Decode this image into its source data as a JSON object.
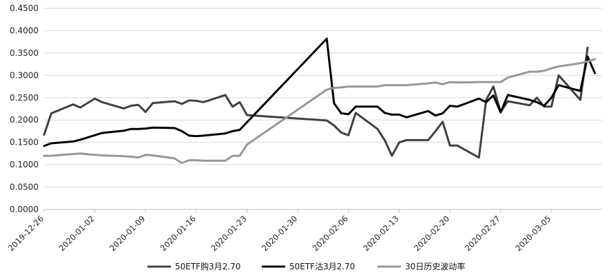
{
  "chart_data": {
    "type": "line",
    "title": "",
    "xlabel": "",
    "ylabel": "",
    "ylim": [
      0,
      0.45
    ],
    "y_ticks": [
      "0.0000",
      "0.0500",
      "0.1000",
      "0.1500",
      "0.2000",
      "0.2500",
      "0.3000",
      "0.3500",
      "0.4000",
      "0.4500"
    ],
    "x_ticks": [
      "2019-12-26",
      "2020-01-02",
      "2020-01-09",
      "2020-01-16",
      "2020-01-23",
      "2020-01-30",
      "2020-02-06",
      "2020-02-13",
      "2020-02-20",
      "2020-02-27",
      "2020-03-05"
    ],
    "x_range": [
      "2019-12-26",
      "2020-03-12"
    ],
    "grid": "horizontal",
    "legend_position": "bottom",
    "series": [
      {
        "name": "50ETF购3月2.70",
        "color": "#404040",
        "points": [
          [
            "2019-12-26",
            0.167
          ],
          [
            "2019-12-27",
            0.215
          ],
          [
            "2019-12-30",
            0.235
          ],
          [
            "2019-12-31",
            0.228
          ],
          [
            "2020-01-02",
            0.248
          ],
          [
            "2020-01-03",
            0.24
          ],
          [
            "2020-01-06",
            0.226
          ],
          [
            "2020-01-07",
            0.232
          ],
          [
            "2020-01-08",
            0.234
          ],
          [
            "2020-01-09",
            0.218
          ],
          [
            "2020-01-10",
            0.238
          ],
          [
            "2020-01-13",
            0.242
          ],
          [
            "2020-01-14",
            0.236
          ],
          [
            "2020-01-15",
            0.244
          ],
          [
            "2020-01-16",
            0.243
          ],
          [
            "2020-01-17",
            0.24
          ],
          [
            "2020-01-20",
            0.256
          ],
          [
            "2020-01-21",
            0.23
          ],
          [
            "2020-01-22",
            0.24
          ],
          [
            "2020-01-23",
            0.211
          ],
          [
            "2020-02-03",
            0.199
          ],
          [
            "2020-02-04",
            0.188
          ],
          [
            "2020-02-05",
            0.172
          ],
          [
            "2020-02-06",
            0.166
          ],
          [
            "2020-02-07",
            0.216
          ],
          [
            "2020-02-10",
            0.18
          ],
          [
            "2020-02-11",
            0.155
          ],
          [
            "2020-02-12",
            0.12
          ],
          [
            "2020-02-13",
            0.15
          ],
          [
            "2020-02-14",
            0.155
          ],
          [
            "2020-02-17",
            0.155
          ],
          [
            "2020-02-18",
            0.175
          ],
          [
            "2020-02-19",
            0.196
          ],
          [
            "2020-02-20",
            0.143
          ],
          [
            "2020-02-21",
            0.143
          ],
          [
            "2020-02-24",
            0.116
          ],
          [
            "2020-02-25",
            0.245
          ],
          [
            "2020-02-26",
            0.275
          ],
          [
            "2020-02-27",
            0.218
          ],
          [
            "2020-02-28",
            0.242
          ],
          [
            "2020-03-02",
            0.233
          ],
          [
            "2020-03-03",
            0.25
          ],
          [
            "2020-03-04",
            0.23
          ],
          [
            "2020-03-05",
            0.23
          ],
          [
            "2020-03-06",
            0.3
          ],
          [
            "2020-03-09",
            0.245
          ],
          [
            "2020-03-10",
            0.362
          ]
        ]
      },
      {
        "name": "50ETF沽3月2.70",
        "color": "#000000",
        "points": [
          [
            "2019-12-26",
            0.142
          ],
          [
            "2019-12-27",
            0.148
          ],
          [
            "2019-12-30",
            0.152
          ],
          [
            "2019-12-31",
            0.156
          ],
          [
            "2020-01-02",
            0.166
          ],
          [
            "2020-01-03",
            0.171
          ],
          [
            "2020-01-06",
            0.176
          ],
          [
            "2020-01-07",
            0.18
          ],
          [
            "2020-01-08",
            0.18
          ],
          [
            "2020-01-09",
            0.181
          ],
          [
            "2020-01-10",
            0.183
          ],
          [
            "2020-01-13",
            0.182
          ],
          [
            "2020-01-14",
            0.175
          ],
          [
            "2020-01-15",
            0.165
          ],
          [
            "2020-01-16",
            0.164
          ],
          [
            "2020-01-17",
            0.165
          ],
          [
            "2020-01-20",
            0.17
          ],
          [
            "2020-01-21",
            0.175
          ],
          [
            "2020-01-22",
            0.178
          ],
          [
            "2020-02-03",
            0.382
          ],
          [
            "2020-02-04",
            0.238
          ],
          [
            "2020-02-05",
            0.215
          ],
          [
            "2020-02-06",
            0.213
          ],
          [
            "2020-02-07",
            0.23
          ],
          [
            "2020-02-10",
            0.23
          ],
          [
            "2020-02-11",
            0.216
          ],
          [
            "2020-02-12",
            0.212
          ],
          [
            "2020-02-13",
            0.212
          ],
          [
            "2020-02-14",
            0.206
          ],
          [
            "2020-02-17",
            0.22
          ],
          [
            "2020-02-18",
            0.21
          ],
          [
            "2020-02-19",
            0.215
          ],
          [
            "2020-02-20",
            0.232
          ],
          [
            "2020-02-21",
            0.23
          ],
          [
            "2020-02-24",
            0.248
          ],
          [
            "2020-02-25",
            0.24
          ],
          [
            "2020-02-26",
            0.255
          ],
          [
            "2020-02-27",
            0.217
          ],
          [
            "2020-02-28",
            0.256
          ],
          [
            "2020-03-02",
            0.245
          ],
          [
            "2020-03-03",
            0.24
          ],
          [
            "2020-03-04",
            0.232
          ],
          [
            "2020-03-05",
            0.25
          ],
          [
            "2020-03-06",
            0.278
          ],
          [
            "2020-03-09",
            0.265
          ],
          [
            "2020-03-10",
            0.342
          ],
          [
            "2020-03-11",
            0.305
          ]
        ]
      },
      {
        "name": "30日历史波动率",
        "color": "#969696",
        "points": [
          [
            "2019-12-26",
            0.12
          ],
          [
            "2019-12-27",
            0.12
          ],
          [
            "2019-12-30",
            0.124
          ],
          [
            "2019-12-31",
            0.125
          ],
          [
            "2020-01-02",
            0.122
          ],
          [
            "2020-01-03",
            0.121
          ],
          [
            "2020-01-06",
            0.119
          ],
          [
            "2020-01-07",
            0.118
          ],
          [
            "2020-01-08",
            0.116
          ],
          [
            "2020-01-09",
            0.122
          ],
          [
            "2020-01-10",
            0.121
          ],
          [
            "2020-01-13",
            0.114
          ],
          [
            "2020-01-14",
            0.104
          ],
          [
            "2020-01-15",
            0.11
          ],
          [
            "2020-01-16",
            0.11
          ],
          [
            "2020-01-17",
            0.109
          ],
          [
            "2020-01-20",
            0.109
          ],
          [
            "2020-01-21",
            0.12
          ],
          [
            "2020-01-22",
            0.12
          ],
          [
            "2020-01-23",
            0.145
          ],
          [
            "2020-02-03",
            0.268
          ],
          [
            "2020-02-04",
            0.272
          ],
          [
            "2020-02-05",
            0.273
          ],
          [
            "2020-02-06",
            0.275
          ],
          [
            "2020-02-07",
            0.275
          ],
          [
            "2020-02-10",
            0.275
          ],
          [
            "2020-02-11",
            0.278
          ],
          [
            "2020-02-12",
            0.278
          ],
          [
            "2020-02-13",
            0.278
          ],
          [
            "2020-02-14",
            0.278
          ],
          [
            "2020-02-17",
            0.282
          ],
          [
            "2020-02-18",
            0.284
          ],
          [
            "2020-02-19",
            0.28
          ],
          [
            "2020-02-20",
            0.285
          ],
          [
            "2020-02-21",
            0.284
          ],
          [
            "2020-02-24",
            0.285
          ],
          [
            "2020-02-25",
            0.285
          ],
          [
            "2020-02-26",
            0.285
          ],
          [
            "2020-02-27",
            0.285
          ],
          [
            "2020-02-28",
            0.295
          ],
          [
            "2020-03-02",
            0.308
          ],
          [
            "2020-03-03",
            0.308
          ],
          [
            "2020-03-04",
            0.31
          ],
          [
            "2020-03-05",
            0.316
          ],
          [
            "2020-03-06",
            0.32
          ],
          [
            "2020-03-09",
            0.327
          ],
          [
            "2020-03-10",
            0.331
          ],
          [
            "2020-03-11",
            0.336
          ]
        ]
      }
    ]
  }
}
